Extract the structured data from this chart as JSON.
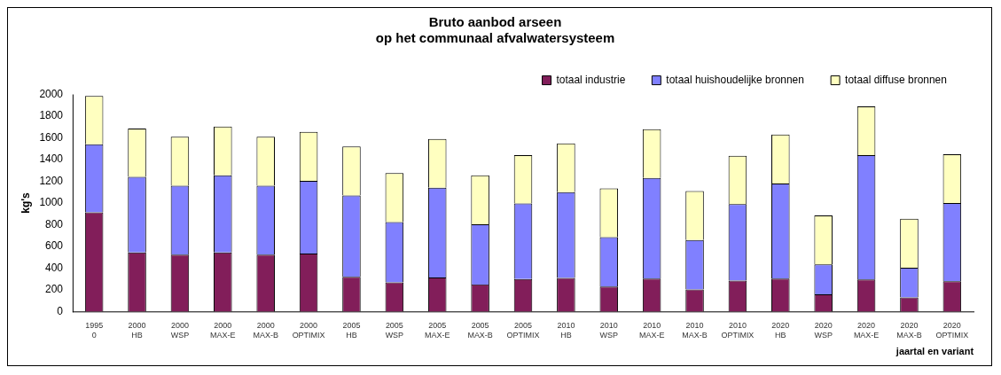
{
  "chart_data": {
    "type": "bar",
    "title": [
      "Bruto aanbod arseen",
      "op het communaal afvalwatersysteem"
    ],
    "xlabel": "jaartal en variant",
    "ylabel": "kg's",
    "categories": [
      "1995\n0",
      "2000\nHB",
      "2000\nWSP",
      "2000\nMAX-E",
      "2000\nMAX-B",
      "2000\nOPTIMIX",
      "2005\nHB",
      "2005\nWSP",
      "2005\nMAX-E",
      "2005\nMAX-B",
      "2005\nOPTIMIX",
      "2010\nHB",
      "2010\nWSP",
      "2010\nMAX-E",
      "2010\nMAX-B",
      "2010\nOPTIMIX",
      "2020\nHB",
      "2020\nWSP",
      "2020\nMAX-E",
      "2020\nMAX-B",
      "2020\nOPTIMIX"
    ],
    "stacked": true,
    "ylim": [
      0,
      2000
    ],
    "yticks": [
      0,
      200,
      400,
      600,
      800,
      1000,
      1200,
      1400,
      1600,
      1800,
      2000
    ],
    "grid": false,
    "legend": "top right",
    "series": [
      {
        "name": "totaal industrie",
        "color": "#821e5a",
        "values": [
          915,
          545,
          525,
          545,
          525,
          535,
          320,
          270,
          315,
          250,
          300,
          310,
          230,
          305,
          205,
          285,
          305,
          160,
          295,
          130,
          280
        ]
      },
      {
        "name": "totaal huishoudelijke bronnen",
        "color": "#8080ff",
        "values": [
          625,
          695,
          635,
          710,
          635,
          670,
          750,
          555,
          825,
          555,
          695,
          790,
          455,
          925,
          455,
          705,
          875,
          275,
          1145,
          275,
          720
        ]
      },
      {
        "name": "totaal diffuse bronnen",
        "color": "#ffffc0",
        "values": [
          445,
          445,
          450,
          450,
          450,
          450,
          450,
          450,
          450,
          450,
          445,
          450,
          450,
          450,
          450,
          445,
          450,
          450,
          450,
          450,
          450
        ]
      }
    ]
  }
}
